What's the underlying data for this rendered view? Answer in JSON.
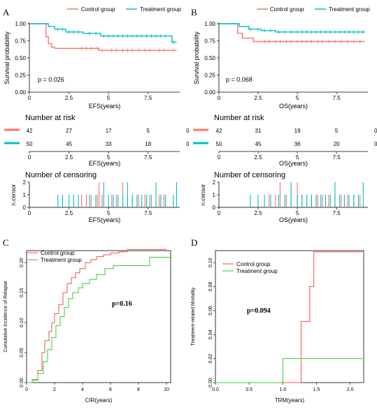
{
  "colors": {
    "control": "#F8766D",
    "treatment": "#00BFC4",
    "control_cd": "#F14F4F",
    "treatment_cd": "#33CC33",
    "axis": "#000000",
    "grid": "#BBBBBB"
  },
  "chart_data": [
    {
      "panel": "A",
      "type": "line",
      "subtype": "kaplan-meier",
      "legend": [
        "Control group",
        "Treatment group"
      ],
      "legend_position": "top",
      "xlabel": "EFS(years)",
      "ylabel": "Survival probability",
      "xlim": [
        0,
        9.5
      ],
      "ylim": [
        0,
        1
      ],
      "xticks": [
        "0",
        "2.5",
        "5",
        "7.5"
      ],
      "yticks": [
        "0.00",
        "0.25",
        "0.50",
        "0.75",
        "1.00"
      ],
      "annotation": "p = 0.026",
      "series": [
        {
          "name": "Control group",
          "x": [
            0,
            0.9,
            1.05,
            1.2,
            1.4,
            1.6,
            4.4,
            9.3
          ],
          "y": [
            1,
            1,
            0.81,
            0.71,
            0.66,
            0.64,
            0.61,
            0.61
          ],
          "censor_x": [
            3.3,
            3.6,
            3.9,
            4.3,
            4.6,
            5.2,
            5.5,
            5.9,
            6.2,
            6.5,
            6.9,
            7.3,
            7.6,
            8.2,
            8.5,
            9.1
          ]
        },
        {
          "name": "Treatment group",
          "x": [
            0,
            1.0,
            1.2,
            1.6,
            2.3,
            3.4,
            4.5,
            9.0,
            9.3
          ],
          "y": [
            1,
            1,
            0.96,
            0.92,
            0.88,
            0.86,
            0.82,
            0.73,
            0.73
          ],
          "censor_x": [
            1.8,
            2.1,
            2.5,
            2.8,
            3.1,
            3.8,
            4.2,
            4.7,
            5.0,
            5.3,
            5.6,
            5.9,
            6.2,
            6.5,
            6.8,
            7.1,
            7.4,
            7.7,
            8.0,
            8.3,
            8.6,
            9.1
          ]
        }
      ]
    },
    {
      "panel": "B",
      "type": "line",
      "subtype": "kaplan-meier",
      "legend": [
        "Control group",
        "Treatment group"
      ],
      "legend_position": "top",
      "xlabel": "OS(years)",
      "ylabel": "Survival probability",
      "xlim": [
        0,
        9.5
      ],
      "ylim": [
        0,
        1
      ],
      "xticks": [
        "0",
        "2.5",
        "5",
        "7.5"
      ],
      "yticks": [
        "0.00",
        "0.25",
        "0.50",
        "0.75",
        "1.00"
      ],
      "annotation": "p = 0.068",
      "series": [
        {
          "name": "Control group",
          "x": [
            0,
            1.0,
            1.2,
            1.5,
            2.2,
            9.3
          ],
          "y": [
            1,
            1,
            0.86,
            0.79,
            0.74,
            0.74
          ],
          "censor_x": [
            2.9,
            3.2,
            3.6,
            3.9,
            4.3,
            4.6,
            5.0,
            5.3,
            5.6,
            5.9,
            6.3,
            6.6,
            7.0,
            7.4,
            7.8,
            8.2,
            8.6,
            9.0
          ]
        },
        {
          "name": "Treatment group",
          "x": [
            0,
            1.0,
            1.3,
            1.9,
            2.7,
            3.6,
            9.3
          ],
          "y": [
            1,
            1,
            0.96,
            0.92,
            0.9,
            0.88,
            0.88
          ],
          "censor_x": [
            2.0,
            2.5,
            2.9,
            3.3,
            3.8,
            4.2,
            4.6,
            5.0,
            5.3,
            5.6,
            5.9,
            6.2,
            6.5,
            6.8,
            7.1,
            7.4,
            7.7,
            8.0,
            8.3,
            8.6,
            8.9,
            9.2
          ]
        }
      ]
    },
    {
      "panel": "A",
      "type": "table",
      "title": "Number at risk",
      "xlabel": "EFS(years)",
      "xlim": [
        0,
        9.5
      ],
      "xticks": [
        "0",
        "2.5",
        "5",
        "7.5"
      ],
      "times": [
        0,
        2.5,
        5,
        7.5,
        10
      ],
      "rows": [
        {
          "name": "Control group",
          "values": [
            "42",
            "27",
            "17",
            "5",
            "0"
          ]
        },
        {
          "name": "Treatment group",
          "values": [
            "50",
            "45",
            "33",
            "18",
            "0"
          ]
        }
      ]
    },
    {
      "panel": "B",
      "type": "table",
      "title": "Number at risk",
      "xlabel": "OS(years)",
      "xlim": [
        0,
        9.5
      ],
      "xticks": [
        "0",
        "2.5",
        "5",
        "7.5"
      ],
      "times": [
        0,
        2.5,
        5,
        7.5,
        10
      ],
      "rows": [
        {
          "name": "Control group",
          "values": [
            "42",
            "31",
            "19",
            "5",
            "0"
          ]
        },
        {
          "name": "Treatment group",
          "values": [
            "50",
            "45",
            "36",
            "20",
            "0"
          ]
        }
      ]
    },
    {
      "panel": "A",
      "type": "bar",
      "title": "Number of censoring",
      "xlabel": "EFS(years)",
      "ylabel": "n.censor",
      "xlim": [
        0,
        9.5
      ],
      "ylim": [
        0,
        2
      ],
      "xticks": [
        "0",
        "2.5",
        "5",
        "7.5"
      ],
      "yticks": [
        "0",
        "1",
        "2"
      ],
      "series": [
        {
          "name": "Control group",
          "x": [
            3.3,
            3.6,
            3.9,
            4.3,
            4.4,
            4.6,
            5.2,
            5.5,
            5.9,
            6.2,
            6.5,
            6.9,
            7.3,
            7.6,
            8.2,
            8.5,
            9.1
          ],
          "values": [
            1,
            1,
            1,
            1,
            2,
            1,
            1,
            1,
            2,
            1,
            1,
            1,
            1,
            1,
            1,
            1,
            1
          ]
        },
        {
          "name": "Treatment group",
          "x": [
            1.8,
            2.1,
            2.5,
            2.8,
            3.1,
            3.8,
            4.2,
            4.7,
            5.0,
            5.3,
            5.6,
            5.9,
            6.2,
            6.5,
            6.8,
            7.1,
            7.4,
            7.7,
            8.0,
            8.3,
            8.6,
            9.1,
            9.3
          ],
          "values": [
            1,
            1,
            1,
            1,
            1,
            1,
            1,
            2,
            1,
            1,
            1,
            1,
            2,
            1,
            1,
            1,
            1,
            1,
            2,
            1,
            1,
            1,
            2
          ]
        }
      ]
    },
    {
      "panel": "B",
      "type": "bar",
      "title": "Number of censoring",
      "xlabel": "OS(years)",
      "ylabel": "n.censor",
      "xlim": [
        0,
        9.5
      ],
      "ylim": [
        0,
        2
      ],
      "xticks": [
        "0",
        "2.5",
        "5",
        "7.5"
      ],
      "yticks": [
        "0",
        "1",
        "2"
      ],
      "series": [
        {
          "name": "Control group",
          "x": [
            2.9,
            3.2,
            3.6,
            3.9,
            4.3,
            4.6,
            5.0,
            5.3,
            5.6,
            5.9,
            6.3,
            6.6,
            7.0,
            7.4,
            7.8,
            8.2,
            8.6,
            9.0
          ],
          "values": [
            1,
            1,
            1,
            2,
            1,
            1,
            2,
            1,
            1,
            1,
            1,
            1,
            1,
            1,
            1,
            1,
            1,
            1
          ]
        },
        {
          "name": "Treatment group",
          "x": [
            2.0,
            2.5,
            2.9,
            3.3,
            3.8,
            4.2,
            4.6,
            5.0,
            5.3,
            5.6,
            5.9,
            6.2,
            6.5,
            6.8,
            7.1,
            7.4,
            7.7,
            8.0,
            8.3,
            8.6,
            8.9,
            9.2
          ],
          "values": [
            1,
            1,
            1,
            1,
            1,
            1,
            2,
            1,
            1,
            1,
            1,
            1,
            1,
            1,
            1,
            2,
            1,
            1,
            1,
            1,
            1,
            2
          ]
        }
      ]
    },
    {
      "panel": "C",
      "type": "line",
      "subtype": "cumulative-incidence",
      "legend": [
        "Control group",
        "Treatment group"
      ],
      "legend_position": "top-left",
      "xlabel": "CIR(years)",
      "ylabel": "Cumulative Incidence of Relapse",
      "xlim": [
        0,
        10.3
      ],
      "ylim": [
        0,
        0.22
      ],
      "xticks": [
        "0",
        "2",
        "4",
        "6",
        "8",
        "10"
      ],
      "yticks": [
        "0.00",
        "0.05",
        "0.10",
        "0.15",
        "0.20"
      ],
      "annotation": "p=0.16",
      "series": [
        {
          "name": "Control group",
          "x": [
            0,
            0.4,
            0.8,
            1.1,
            1.3,
            1.6,
            1.8,
            2.0,
            2.3,
            2.6,
            2.9,
            3.2,
            3.5,
            3.8,
            4.2,
            4.6,
            5.0,
            5.5,
            6.0,
            6.6,
            7.2,
            10.0
          ],
          "y": [
            0,
            0.005,
            0.02,
            0.05,
            0.07,
            0.085,
            0.1,
            0.115,
            0.13,
            0.15,
            0.165,
            0.175,
            0.183,
            0.19,
            0.2,
            0.205,
            0.21,
            0.213,
            0.216,
            0.218,
            0.222,
            0.222
          ]
        },
        {
          "name": "Treatment group",
          "x": [
            0,
            0.4,
            0.8,
            1.2,
            1.5,
            1.8,
            2.1,
            2.4,
            2.7,
            3.0,
            3.3,
            3.7,
            4.0,
            4.5,
            5.0,
            5.6,
            6.2,
            8.8,
            10.3
          ],
          "y": [
            0,
            0.004,
            0.015,
            0.035,
            0.055,
            0.075,
            0.095,
            0.11,
            0.125,
            0.14,
            0.15,
            0.158,
            0.165,
            0.172,
            0.18,
            0.19,
            0.195,
            0.209,
            0.209
          ]
        }
      ]
    },
    {
      "panel": "D",
      "type": "line",
      "subtype": "cumulative-incidence",
      "legend": [
        "Control group",
        "Treatment group"
      ],
      "legend_position": "top-left",
      "xlabel": "TRM(years)",
      "ylabel": "Treatment-related Mortality",
      "xlim": [
        0,
        2.2
      ],
      "ylim": [
        0,
        0.11
      ],
      "xticks": [
        "0.0",
        "0.5",
        "1.0",
        "1.5",
        "2.0"
      ],
      "yticks": [
        "0.00",
        "0.02",
        "0.04",
        "0.06",
        "0.08",
        "0.10"
      ],
      "annotation": "p=0.094",
      "series": [
        {
          "name": "Control group",
          "x": [
            0,
            1.24,
            1.27,
            1.4,
            1.46,
            2.18
          ],
          "y": [
            0,
            0,
            0.051,
            0.08,
            0.109,
            0.109
          ]
        },
        {
          "name": "Treatment group",
          "x": [
            0,
            1.0,
            2.18
          ],
          "y": [
            0,
            0.02,
            0.02
          ]
        }
      ]
    }
  ],
  "panels": {
    "A": "A",
    "B": "B",
    "C": "C",
    "D": "D"
  },
  "left_layout": {
    "risk_title": "Number at risk",
    "censor_title": "Number of censoring"
  }
}
